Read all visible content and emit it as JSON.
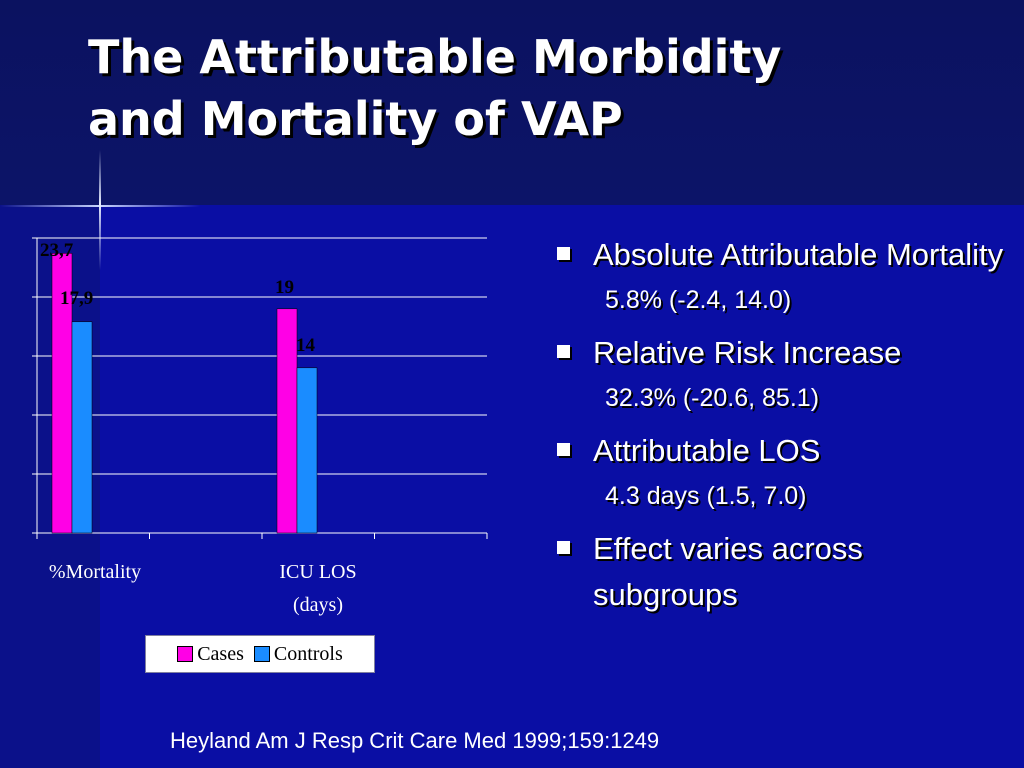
{
  "title": {
    "line1": "The Attributable Morbidity",
    "line2": "and Mortality of VAP"
  },
  "chart_data": {
    "type": "bar",
    "categories": [
      "% Mortality",
      "ICU LOS (days)"
    ],
    "category_label_lines": [
      [
        "%Mortality"
      ],
      [
        "ICU LOS",
        "(days)"
      ]
    ],
    "series": [
      {
        "name": "Cases",
        "values": [
          23.7,
          19
        ],
        "labels": [
          "23,7",
          "19"
        ],
        "color": "#ff00e6"
      },
      {
        "name": "Controls",
        "values": [
          17.9,
          14
        ],
        "labels": [
          "17,9",
          "14"
        ],
        "color": "#1a8cff"
      }
    ],
    "ylim": [
      0,
      25
    ],
    "grid": true,
    "legend_position": "bottom"
  },
  "bullets": [
    {
      "text": "Absolute Attributable Mortality",
      "sub": "5.8% (-2.4, 14.0)"
    },
    {
      "text": "Relative Risk Increase",
      "sub": "32.3% (-20.6, 85.1)"
    },
    {
      "text": "Attributable LOS",
      "sub": "4.3 days (1.5, 7.0)"
    },
    {
      "text": "Effect varies across subgroups",
      "sub": ""
    }
  ],
  "citation": "Heyland Am J Resp Crit Care Med 1999;159:1249",
  "colors": {
    "background": "#0a0ea4",
    "cases": "#ff00e6",
    "controls": "#1a8cff",
    "text": "#ffffff"
  }
}
